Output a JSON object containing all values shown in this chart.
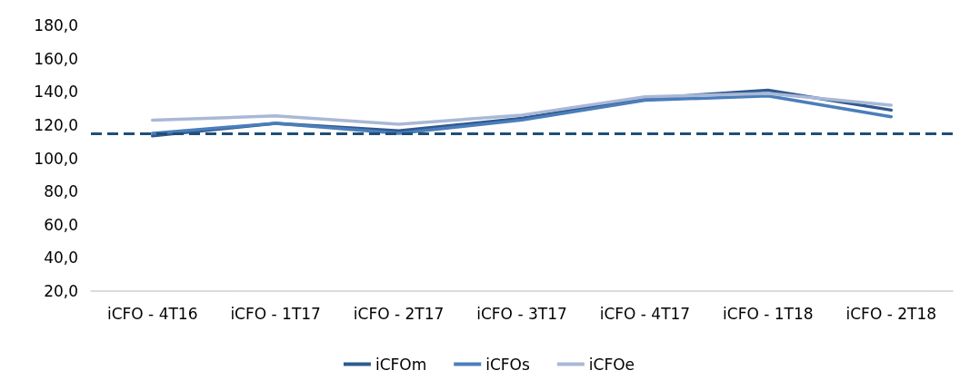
{
  "chart_data": {
    "type": "line",
    "categories": [
      "iCFO - 4T16",
      "iCFO - 1T17",
      "iCFO - 2T17",
      "iCFO - 3T17",
      "iCFO - 4T17",
      "iCFO - 1T18",
      "iCFO - 2T18"
    ],
    "series": [
      {
        "name": "iCFOm",
        "color": "#2f5a8f",
        "values": [
          113.5,
          121,
          116.5,
          124,
          136,
          141,
          129
        ]
      },
      {
        "name": "iCFOs",
        "color": "#4a7ebb",
        "values": [
          115,
          121,
          115,
          123,
          135,
          137.5,
          125
        ]
      },
      {
        "name": "iCFOe",
        "color": "#a9b8d6",
        "values": [
          123,
          125.5,
          120.5,
          126,
          137,
          139,
          132
        ]
      }
    ],
    "ylim": [
      20,
      180
    ],
    "yticks": [
      {
        "value": 20,
        "label": "20,0"
      },
      {
        "value": 40,
        "label": "40,0"
      },
      {
        "value": 60,
        "label": "60,0"
      },
      {
        "value": 80,
        "label": "80,0"
      },
      {
        "value": 100,
        "label": "100,0"
      },
      {
        "value": 120,
        "label": "120,0"
      },
      {
        "value": 140,
        "label": "140,0"
      },
      {
        "value": 160,
        "label": "160,0"
      },
      {
        "value": 180,
        "label": "180,0"
      }
    ],
    "ref_lines": [
      {
        "axis": "y",
        "value": 115,
        "color": "#1f4e79",
        "line_style": "dashed"
      }
    ],
    "grid": false,
    "legend": "bottom",
    "marker": "none",
    "line_style": "solid"
  }
}
